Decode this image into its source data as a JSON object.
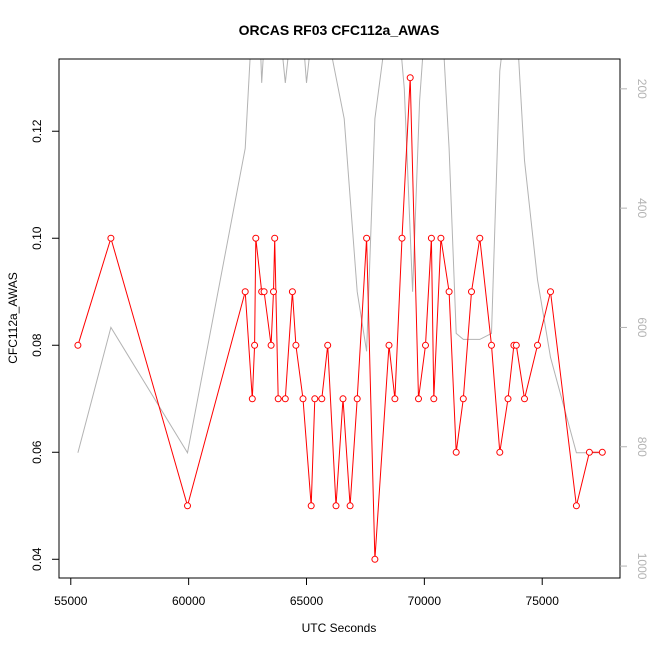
{
  "chart_data": {
    "type": "line",
    "title": "ORCAS RF03 CFC112a_AWAS",
    "xlabel": "UTC Seconds",
    "ylabel": "CFC112a_AWAS",
    "xlim": [
      54500,
      78300
    ],
    "ylim": [
      0.0365,
      0.1335
    ],
    "x_ticks": [
      55000,
      60000,
      65000,
      70000,
      75000
    ],
    "y_ticks": [
      0.04,
      0.06,
      0.08,
      0.1,
      0.12
    ],
    "y2_ticks": [
      200,
      400,
      600,
      800,
      1000
    ],
    "y2lim": [
      1020,
      150
    ],
    "series": [
      {
        "color": "#ff0000",
        "markers": "open-circle",
        "x": [
          55300,
          56700,
          59950,
          62400,
          62700,
          62800,
          62850,
          63100,
          63200,
          63500,
          63600,
          63650,
          63800,
          64100,
          64400,
          64550,
          64850,
          65200,
          65350,
          65650,
          65900,
          66250,
          66550,
          66850,
          67150,
          67550,
          67900,
          68500,
          68750,
          69050,
          69400,
          69750,
          70050,
          70300,
          70400,
          70700,
          71050,
          71350,
          71650,
          72000,
          72350,
          72850,
          73200,
          73550,
          73800,
          73900,
          74250,
          74800,
          75350,
          76450,
          77000,
          77550
        ],
        "y": [
          0.08,
          0.1,
          0.05,
          0.09,
          0.07,
          0.08,
          0.1,
          0.09,
          0.09,
          0.08,
          0.09,
          0.1,
          0.07,
          0.07,
          0.09,
          0.08,
          0.07,
          0.05,
          0.07,
          0.07,
          0.08,
          0.05,
          0.07,
          0.05,
          0.07,
          0.1,
          0.04,
          0.08,
          0.07,
          0.1,
          0.13,
          0.07,
          0.08,
          0.1,
          0.07,
          0.1,
          0.09,
          0.06,
          0.07,
          0.09,
          0.1,
          0.08,
          0.06,
          0.07,
          0.08,
          0.08,
          0.07,
          0.08,
          0.09,
          0.05,
          0.06,
          0.06
        ]
      },
      {
        "color": "#b3b3b3",
        "axis": "right",
        "x": [
          55300,
          56700,
          59950,
          62400,
          62700,
          62950,
          63100,
          63300,
          63600,
          63800,
          64100,
          64400,
          64700,
          65000,
          65300,
          65650,
          66000,
          66600,
          67150,
          67550,
          67900,
          68400,
          68800,
          69150,
          69500,
          69800,
          70050,
          70350,
          70700,
          71050,
          71350,
          71650,
          72000,
          72350,
          72850,
          73200,
          73550,
          73900,
          74250,
          74800,
          75350,
          76450,
          77000,
          77550
        ],
        "y": [
          810,
          600,
          810,
          300,
          80,
          20,
          190,
          60,
          30,
          70,
          190,
          80,
          30,
          190,
          80,
          50,
          130,
          250,
          540,
          640,
          250,
          100,
          40,
          200,
          540,
          220,
          80,
          10,
          50,
          300,
          610,
          620,
          620,
          620,
          610,
          170,
          50,
          80,
          320,
          520,
          650,
          810,
          810,
          810
        ]
      }
    ]
  }
}
